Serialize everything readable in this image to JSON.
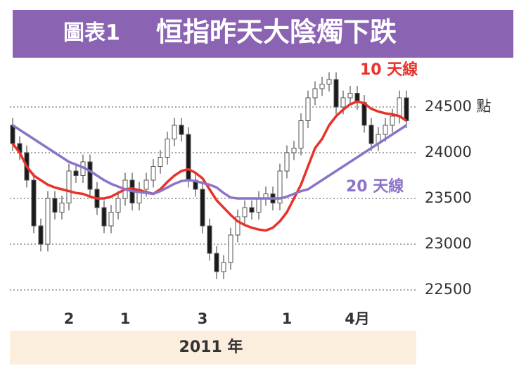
{
  "chart_data": {
    "type": "candlestick",
    "figure_label": "圖表1",
    "title": "恒指昨天大陰燭下跌",
    "x_label": "2011 年",
    "categories": [
      null,
      null,
      null,
      null,
      null,
      null,
      null,
      null,
      "2",
      null,
      null,
      null,
      null,
      null,
      null,
      null,
      "1",
      null,
      null,
      null,
      null,
      null,
      null,
      null,
      null,
      null,
      null,
      "3",
      null,
      null,
      null,
      null,
      null,
      null,
      null,
      null,
      null,
      null,
      null,
      "1",
      null,
      null,
      null,
      null,
      null,
      null,
      null,
      null,
      null,
      "4月",
      null,
      null,
      null,
      null,
      null,
      null,
      null
    ],
    "open": [
      24300,
      24100,
      24000,
      23700,
      23200,
      23000,
      23500,
      23350,
      23450,
      23800,
      23750,
      23900,
      23600,
      23400,
      23200,
      23350,
      23500,
      23700,
      23450,
      23600,
      23700,
      23850,
      23950,
      24150,
      24300,
      24200,
      23700,
      23600,
      23200,
      22900,
      22700,
      22800,
      23100,
      23300,
      23400,
      23350,
      23500,
      23550,
      23450,
      23800,
      24000,
      24050,
      24350,
      24600,
      24700,
      24750,
      24800,
      24500,
      24600,
      24650,
      24550,
      24300,
      24100,
      24200,
      24300,
      24400,
      24600
    ],
    "high": [
      24380,
      24180,
      24080,
      23780,
      23280,
      23580,
      23580,
      23530,
      23880,
      23880,
      23980,
      23980,
      23680,
      23480,
      23430,
      23580,
      23780,
      23780,
      23680,
      23780,
      23930,
      24030,
      24230,
      24380,
      24380,
      24280,
      23780,
      23680,
      23280,
      22980,
      22880,
      23180,
      23380,
      23480,
      23480,
      23580,
      23630,
      23630,
      23880,
      24080,
      24130,
      24430,
      24680,
      24780,
      24830,
      24880,
      24880,
      24680,
      24730,
      24730,
      24630,
      24380,
      24280,
      24380,
      24480,
      24680,
      24680
    ],
    "low": [
      24020,
      23920,
      23620,
      23120,
      22920,
      22920,
      23270,
      23270,
      23370,
      23670,
      23670,
      23520,
      23320,
      23120,
      23120,
      23270,
      23420,
      23370,
      23370,
      23520,
      23620,
      23770,
      23870,
      24070,
      24120,
      23620,
      23520,
      23120,
      22820,
      22620,
      22620,
      22720,
      23020,
      23220,
      23270,
      23270,
      23420,
      23370,
      23370,
      23720,
      23920,
      23970,
      24270,
      24520,
      24620,
      24670,
      24420,
      24420,
      24520,
      24470,
      24220,
      24020,
      24020,
      24120,
      24220,
      24320,
      24270
    ],
    "close": [
      24100,
      24000,
      23700,
      23200,
      23000,
      23500,
      23350,
      23450,
      23800,
      23750,
      23900,
      23600,
      23400,
      23200,
      23350,
      23500,
      23700,
      23450,
      23600,
      23700,
      23850,
      23950,
      24150,
      24300,
      24200,
      23700,
      23600,
      23200,
      22900,
      22700,
      22800,
      23100,
      23300,
      23400,
      23350,
      23500,
      23550,
      23450,
      23800,
      24000,
      24050,
      24350,
      24600,
      24700,
      24750,
      24800,
      24500,
      24600,
      24650,
      24550,
      24300,
      24100,
      24200,
      24300,
      24400,
      24600,
      24350
    ],
    "up_color": "#ffffff",
    "down_color": "#1a1a1a",
    "series": [
      {
        "name": "10 天線",
        "color": "#e8322a",
        "values": [
          24100,
          24000,
          23850,
          23750,
          23700,
          23650,
          23620,
          23600,
          23580,
          23560,
          23550,
          23520,
          23500,
          23500,
          23520,
          23560,
          23600,
          23610,
          23590,
          23570,
          23550,
          23600,
          23680,
          23750,
          23800,
          23820,
          23780,
          23720,
          23600,
          23480,
          23400,
          23320,
          23250,
          23210,
          23180,
          23160,
          23150,
          23180,
          23250,
          23350,
          23500,
          23650,
          23850,
          24050,
          24150,
          24300,
          24400,
          24470,
          24530,
          24560,
          24540,
          24480,
          24450,
          24430,
          24420,
          24400,
          24350
        ]
      },
      {
        "name": "20 天線",
        "color": "#8b74c8",
        "values": [
          24300,
          24250,
          24200,
          24150,
          24100,
          24050,
          24000,
          23950,
          23900,
          23870,
          23840,
          23800,
          23750,
          23700,
          23660,
          23630,
          23600,
          23580,
          23570,
          23560,
          23550,
          23580,
          23620,
          23660,
          23690,
          23700,
          23690,
          23670,
          23650,
          23620,
          23560,
          23510,
          23500,
          23500,
          23500,
          23500,
          23500,
          23500,
          23500,
          23520,
          23550,
          23580,
          23600,
          23650,
          23700,
          23750,
          23800,
          23850,
          23900,
          23950,
          24000,
          24050,
          24100,
          24150,
          24200,
          24250,
          24300
        ]
      }
    ],
    "ylim": [
      22400,
      25000
    ],
    "yticks": [
      22500,
      23000,
      23500,
      24000,
      {
        "value": 24500,
        "label": "24500 點"
      }
    ],
    "grid": true
  }
}
